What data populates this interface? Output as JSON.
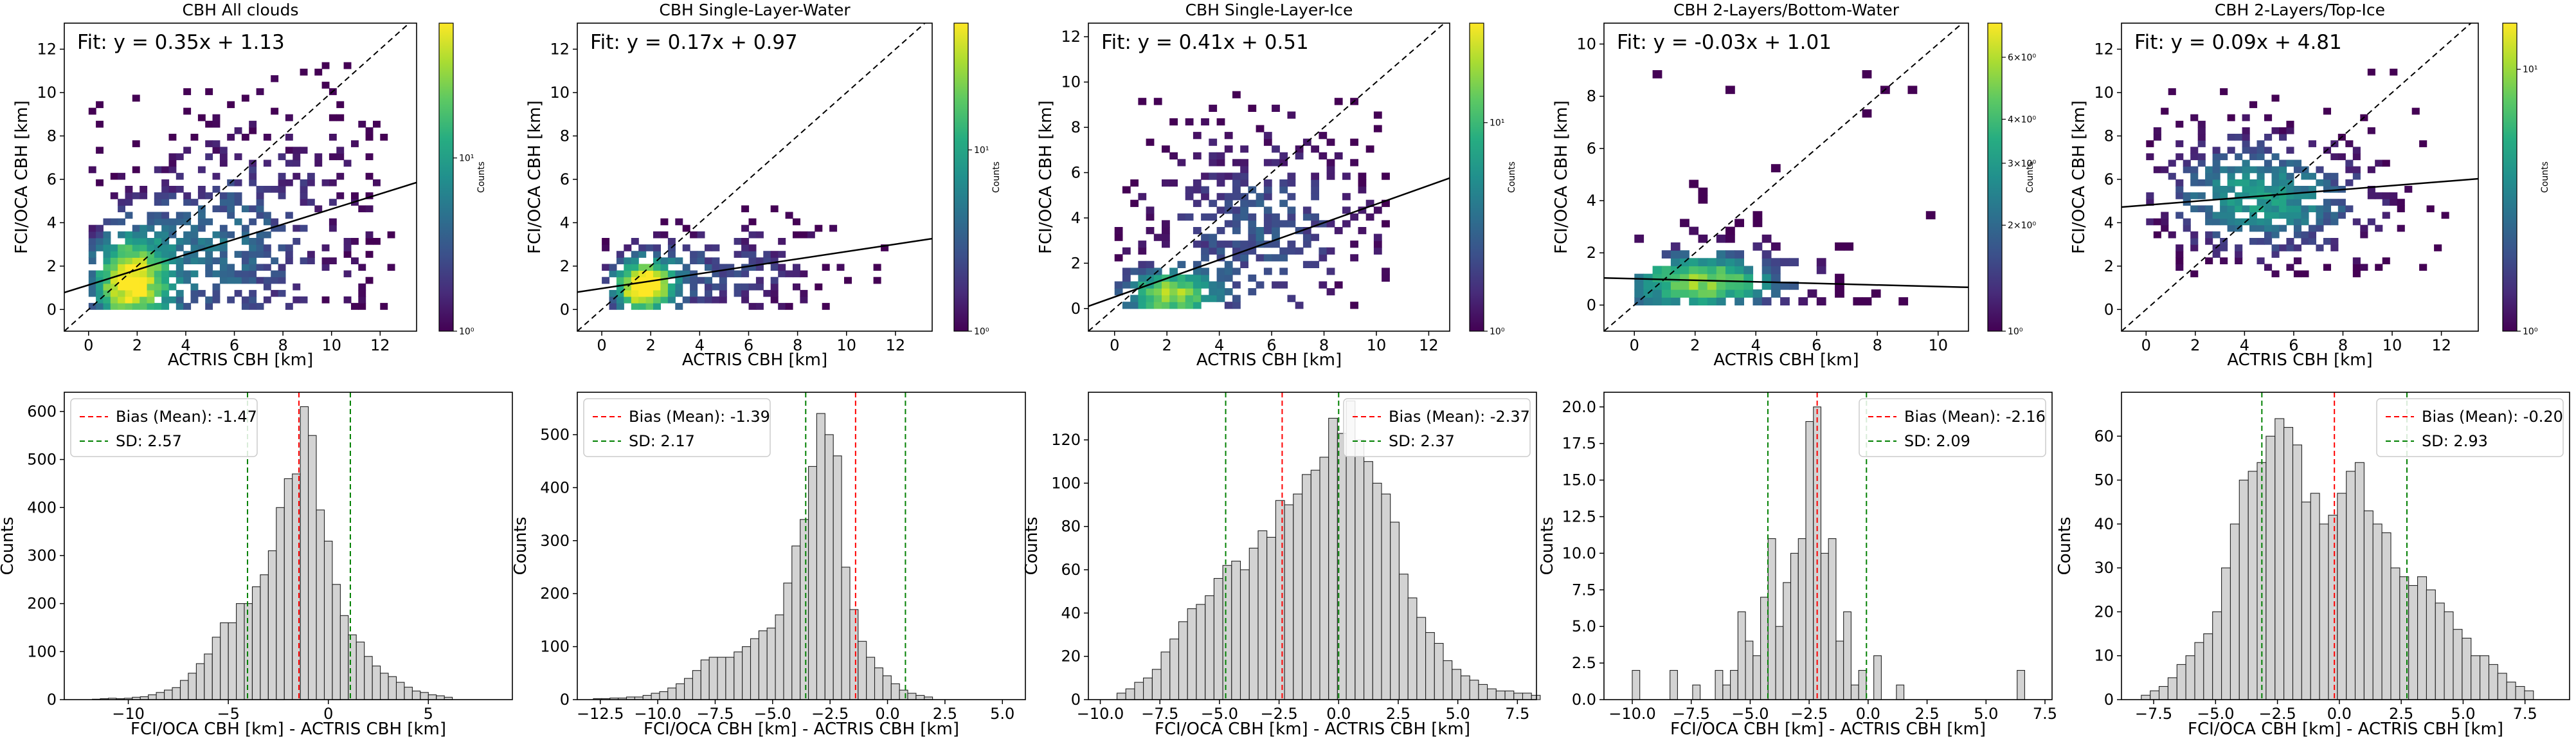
{
  "figure": {
    "scatter_xlabel": "ACTRIS CBH [km]",
    "scatter_ylabel": "FCI/OCA CBH [km]",
    "hist_xlabel": "FCI/OCA CBH [km] - ACTRIS CBH [km]",
    "hist_ylabel": "Counts",
    "colorbar_label": "Counts",
    "colors": {
      "bar": "#d3d3d3",
      "bias": "#ff0000",
      "sd": "#008000",
      "fit": "#000000"
    }
  },
  "chart_data": [
    {
      "type": "heatmap",
      "title": "CBH All clouds",
      "fit_text": "Fit: y = 0.35x + 1.13",
      "slope": 0.35,
      "intercept": 1.13,
      "xlim": [
        -1,
        13.5
      ],
      "ylim": [
        -1,
        13.2
      ],
      "xticks": [
        0,
        2,
        4,
        6,
        8,
        10,
        12
      ],
      "yticks": [
        0,
        2,
        4,
        6,
        8,
        10,
        12
      ],
      "colorbar": {
        "scale": "log",
        "range": [
          1,
          60
        ],
        "ticks": [
          1,
          10
        ],
        "tick_labels": [
          "10⁰",
          "10¹"
        ]
      },
      "bins": {
        "x_range": [
          0,
          12.6
        ],
        "y_range": [
          0,
          11.4
        ],
        "density": "all"
      }
    },
    {
      "type": "heatmap",
      "title": "CBH Single-Layer-Water",
      "fit_text": "Fit: y = 0.17x + 0.97",
      "slope": 0.17,
      "intercept": 0.97,
      "xlim": [
        -1,
        13.5
      ],
      "ylim": [
        -1,
        13.2
      ],
      "xticks": [
        0,
        2,
        4,
        6,
        8,
        10,
        12
      ],
      "yticks": [
        0,
        2,
        4,
        6,
        8,
        10,
        12
      ],
      "colorbar": {
        "scale": "log",
        "range": [
          1,
          50
        ],
        "ticks": [
          1,
          10
        ],
        "tick_labels": [
          "10⁰",
          "10¹"
        ]
      },
      "bins": {
        "x_range": [
          0,
          11.6
        ],
        "y_range": [
          0,
          4.6
        ],
        "density": "water"
      }
    },
    {
      "type": "heatmap",
      "title": "CBH Single-Layer-Ice",
      "fit_text": "Fit: y = 0.41x + 0.51",
      "slope": 0.41,
      "intercept": 0.51,
      "xlim": [
        -1,
        12.8
      ],
      "ylim": [
        -1,
        12.6
      ],
      "xticks": [
        0,
        2,
        4,
        6,
        8,
        10,
        12
      ],
      "yticks": [
        0,
        2,
        4,
        6,
        8,
        10,
        12
      ],
      "colorbar": {
        "scale": "log",
        "range": [
          1,
          30
        ],
        "ticks": [
          1,
          10
        ],
        "tick_labels": [
          "10⁰",
          "10¹"
        ]
      },
      "bins": {
        "x_range": [
          0,
          10.5
        ],
        "y_range": [
          0,
          9.8
        ],
        "density": "ice"
      }
    },
    {
      "type": "heatmap",
      "title": "CBH 2-Layers/Bottom-Water",
      "fit_text": "Fit: y = -0.03x + 1.01",
      "slope": -0.03,
      "intercept": 1.01,
      "xlim": [
        -1,
        11
      ],
      "ylim": [
        -1,
        10.8
      ],
      "xticks": [
        0,
        2,
        4,
        6,
        8,
        10
      ],
      "yticks": [
        0,
        2,
        4,
        6,
        8,
        10
      ],
      "colorbar": {
        "scale": "log",
        "range": [
          1,
          7.5
        ],
        "ticks": [
          1,
          2,
          3,
          4,
          6
        ],
        "tick_labels": [
          "10⁰",
          "2×10⁰",
          "3×10⁰",
          "4×10⁰",
          "6×10⁰"
        ]
      },
      "bins": {
        "x_range": [
          0,
          9.8
        ],
        "y_range": [
          0,
          9.8
        ],
        "density": "bottom"
      }
    },
    {
      "type": "heatmap",
      "title": "CBH 2-Layers/Top-Ice",
      "fit_text": "Fit: y = 0.09x + 4.81",
      "slope": 0.09,
      "intercept": 4.81,
      "xlim": [
        -1,
        13.5
      ],
      "ylim": [
        -1,
        13.2
      ],
      "xticks": [
        0,
        2,
        4,
        6,
        8,
        10,
        12
      ],
      "yticks": [
        0,
        2,
        4,
        6,
        8,
        10,
        12
      ],
      "colorbar": {
        "scale": "log",
        "range": [
          1,
          15
        ],
        "ticks": [
          1,
          10
        ],
        "tick_labels": [
          "10⁰",
          "10¹"
        ]
      },
      "bins": {
        "x_range": [
          0,
          12.2
        ],
        "y_range": [
          1.5,
          11.2
        ],
        "density": "top"
      }
    },
    {
      "type": "bar",
      "subtype": "histogram",
      "xlim": [
        -13.2,
        9.2
      ],
      "ylim": [
        0,
        640
      ],
      "xticks": [
        -10,
        -5,
        0,
        5
      ],
      "xtick_labels": [
        "−10",
        "−5",
        "0",
        "5"
      ],
      "yticks": [
        0,
        100,
        200,
        300,
        400,
        500,
        600
      ],
      "bias": -1.47,
      "sd": 2.57,
      "bias_label": "Bias (Mean): -1.47",
      "sd_label": "SD: 2.57",
      "legend_position": "upper-left",
      "bin_start": -11.8,
      "bin_width": 0.4,
      "counts": [
        1,
        2,
        3,
        2,
        3,
        5,
        6,
        10,
        15,
        20,
        25,
        40,
        55,
        75,
        95,
        130,
        160,
        160,
        200,
        200,
        235,
        260,
        310,
        400,
        460,
        470,
        610,
        550,
        395,
        330,
        240,
        175,
        135,
        120,
        90,
        70,
        55,
        48,
        36,
        26,
        18,
        15,
        10,
        8,
        5
      ]
    },
    {
      "type": "bar",
      "subtype": "histogram",
      "xlim": [
        -13.5,
        6.0
      ],
      "ylim": [
        0,
        580
      ],
      "xticks": [
        -12.5,
        -10,
        -7.5,
        -5,
        -2.5,
        0,
        2.5,
        5
      ],
      "xtick_labels": [
        "−12.5",
        "−10.0",
        "−7.5",
        "−5.0",
        "−2.5",
        "0.0",
        "2.5",
        "5.0"
      ],
      "yticks": [
        0,
        100,
        200,
        300,
        400,
        500
      ],
      "bias": -1.39,
      "sd": 2.17,
      "bias_label": "Bias (Mean): -1.39",
      "sd_label": "SD: 2.17",
      "legend_position": "upper-left",
      "bin_start": -12.8,
      "bin_width": 0.36,
      "counts": [
        2,
        2,
        3,
        3,
        5,
        5,
        8,
        12,
        15,
        22,
        30,
        40,
        55,
        75,
        80,
        80,
        80,
        90,
        100,
        115,
        130,
        135,
        160,
        220,
        290,
        340,
        440,
        540,
        500,
        460,
        250,
        170,
        110,
        80,
        60,
        45,
        30,
        18,
        12,
        8,
        5
      ]
    },
    {
      "type": "bar",
      "subtype": "histogram",
      "xlim": [
        -10.5,
        8.3
      ],
      "ylim": [
        0,
        142
      ],
      "xticks": [
        -10,
        -7.5,
        -5,
        -2.5,
        0,
        2.5,
        5,
        7.5
      ],
      "xtick_labels": [
        "−10.0",
        "−7.5",
        "−5.0",
        "−2.5",
        "0.0",
        "2.5",
        "5.0",
        "7.5"
      ],
      "yticks": [
        0,
        20,
        40,
        60,
        80,
        100,
        120
      ],
      "bias": -2.37,
      "sd": 2.37,
      "bias_label": "Bias (Mean): -2.37",
      "sd_label": "SD: 2.37",
      "legend_position": "upper-right",
      "bin_start": -9.3,
      "bin_width": 0.37,
      "counts": [
        3,
        5,
        8,
        10,
        14,
        22,
        28,
        36,
        42,
        44,
        48,
        56,
        62,
        64,
        60,
        70,
        78,
        75,
        92,
        90,
        95,
        104,
        106,
        112,
        130,
        123,
        138,
        120,
        110,
        100,
        95,
        82,
        58,
        47,
        38,
        31,
        26,
        18,
        14,
        11,
        9,
        7,
        5,
        4,
        4,
        3,
        3,
        2
      ]
    },
    {
      "type": "bar",
      "subtype": "histogram",
      "xlim": [
        -11.2,
        7.8
      ],
      "ylim": [
        0,
        21
      ],
      "xticks": [
        -10,
        -7.5,
        -5,
        -2.5,
        0,
        2.5,
        5,
        7.5
      ],
      "xtick_labels": [
        "−10.0",
        "−7.5",
        "−5.0",
        "−2.5",
        "0.0",
        "2.5",
        "5.0",
        "7.5"
      ],
      "yticks": [
        0,
        2.5,
        5,
        7.5,
        10,
        12.5,
        15,
        17.5,
        20
      ],
      "ytick_labels": [
        "0.0",
        "2.5",
        "5.0",
        "7.5",
        "10.0",
        "12.5",
        "15.0",
        "17.5",
        "20.0"
      ],
      "bias": -2.16,
      "sd": 2.09,
      "bias_label": "Bias (Mean): -2.16",
      "sd_label": "SD: 2.09",
      "legend_position": "upper-right",
      "bin_start": -10.0,
      "bin_width": 0.32,
      "counts": [
        2,
        0,
        0,
        0,
        0,
        2,
        0,
        0,
        1,
        0,
        0,
        2,
        1,
        2,
        6,
        4,
        3,
        7,
        11,
        5,
        8,
        10,
        11,
        19,
        20,
        10,
        11,
        4,
        6,
        1,
        2,
        0,
        3,
        0,
        0,
        1,
        0,
        0,
        0,
        0,
        0,
        0,
        0,
        0,
        0,
        0,
        0,
        0,
        0,
        0,
        0,
        2
      ]
    },
    {
      "type": "bar",
      "subtype": "histogram",
      "xlim": [
        -8.8,
        9.3
      ],
      "ylim": [
        0,
        70
      ],
      "xticks": [
        -7.5,
        -5,
        -2.5,
        0,
        2.5,
        5,
        7.5
      ],
      "xtick_labels": [
        "−7.5",
        "−5.0",
        "−2.5",
        "0.0",
        "2.5",
        "5.0",
        "7.5"
      ],
      "yticks": [
        0,
        10,
        20,
        30,
        40,
        50,
        60
      ],
      "bias": -0.2,
      "sd": 2.93,
      "bias_label": "Bias (Mean): -0.20",
      "sd_label": "SD: 2.93",
      "legend_position": "upper-right",
      "bin_start": -8.0,
      "bin_width": 0.36,
      "counts": [
        1,
        2,
        3,
        5,
        8,
        10,
        13,
        15,
        20,
        30,
        40,
        50,
        52,
        54,
        60,
        64,
        62,
        58,
        45,
        47,
        40,
        42,
        47,
        52,
        54,
        43,
        40,
        38,
        30,
        28,
        26,
        28,
        25,
        22,
        20,
        16,
        14,
        10,
        10,
        8,
        6,
        4,
        3,
        2
      ]
    }
  ]
}
